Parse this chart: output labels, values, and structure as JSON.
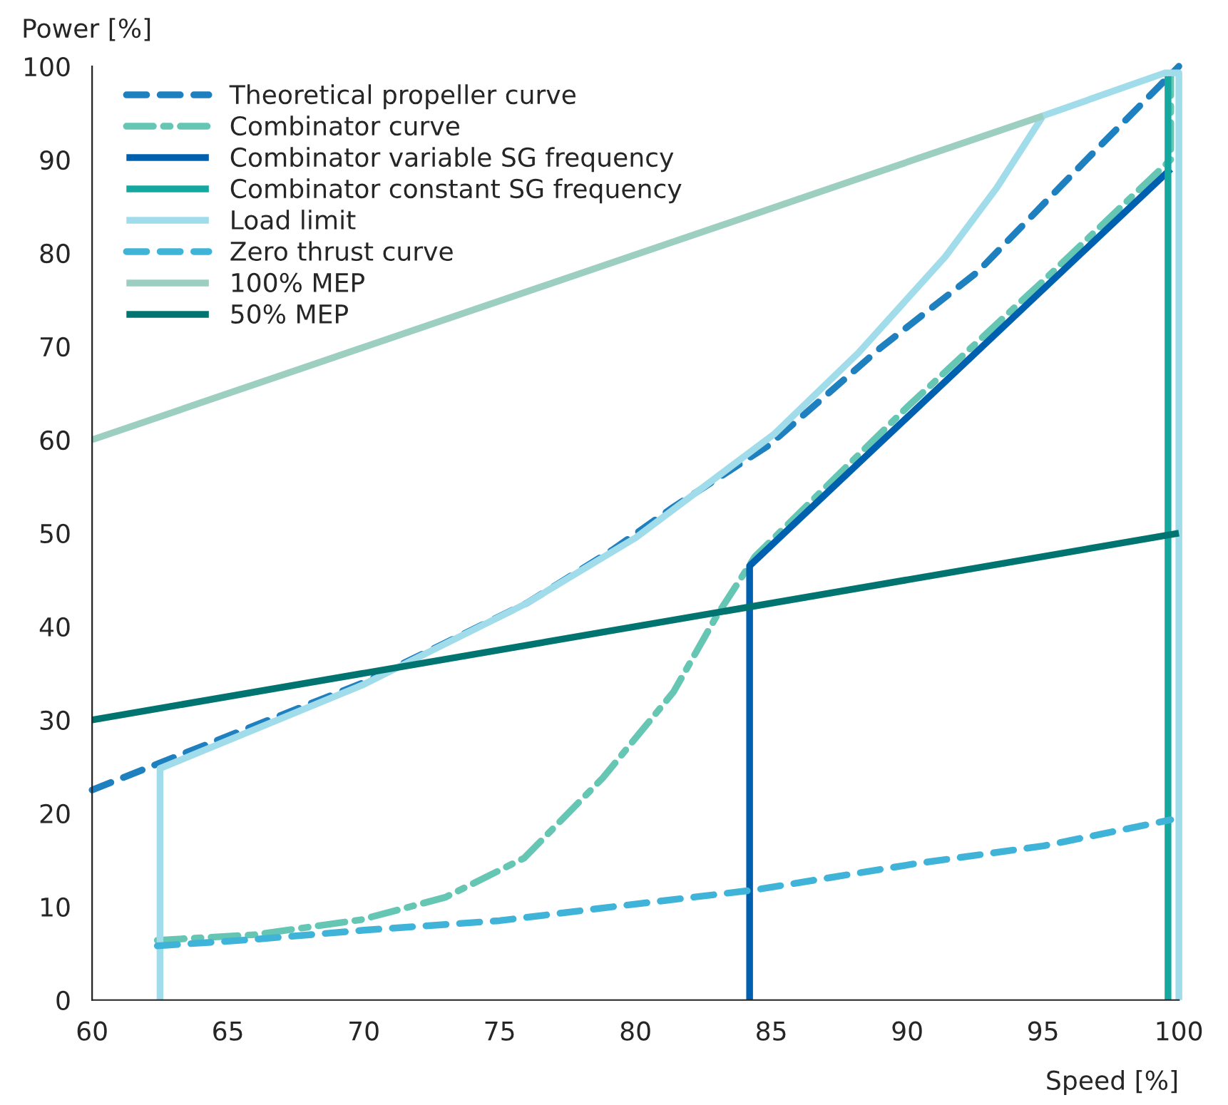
{
  "chart_data": {
    "type": "line",
    "xlabel": "Speed [%]",
    "ylabel": "Power [%]",
    "xlim": [
      60,
      100
    ],
    "xticks": [
      60,
      65,
      70,
      75,
      80,
      85,
      90,
      95,
      100
    ],
    "ylim": [
      0,
      100
    ],
    "yticks": [
      0,
      10,
      20,
      30,
      40,
      50,
      60,
      70,
      80,
      90,
      100
    ],
    "grid": false,
    "legend": "top left",
    "marker": "none",
    "series": [
      {
        "name": "Theoretical propeller curve",
        "color": "#1f80c0",
        "line_style": "dashed",
        "x": [
          60,
          62.5,
          70,
          76,
          79.2,
          81.4,
          84.9,
          89,
          92.6,
          96.6,
          100
        ],
        "values": [
          22.5,
          25.4,
          34,
          42.5,
          48.3,
          52.8,
          59.4,
          69.8,
          78,
          90,
          100
        ]
      },
      {
        "name": "Combinator curve",
        "color": "#66c6b4",
        "line_style": "dashdot",
        "x": [
          62.4,
          66,
          69.9,
          73,
          75.9,
          78.8,
          81.4,
          83,
          84.4,
          90,
          95,
          99.7,
          99.7
        ],
        "values": [
          6.4,
          7,
          8.6,
          11,
          15.2,
          23.8,
          33,
          41.2,
          47.5,
          63.5,
          77,
          90,
          99
        ]
      },
      {
        "name": "Combinator variable SG frequency",
        "color": "#0060b0",
        "line_style": "solid",
        "x": [
          84.2,
          84.2,
          99.7
        ],
        "values": [
          0,
          46.5,
          89
        ]
      },
      {
        "name": "Combinator constant SG frequency",
        "color": "#14a89e",
        "line_style": "solid",
        "x": [
          99.6,
          99.6
        ],
        "values": [
          0,
          99
        ]
      },
      {
        "name": "Load limit",
        "color": "#a0dcea",
        "line_style": "solid",
        "x": [
          62.5,
          62.5,
          70,
          76,
          80,
          85.1,
          88.2,
          91.4,
          93.3,
          95,
          99.5,
          100,
          100
        ],
        "values": [
          0,
          24.8,
          33.8,
          42.5,
          49.5,
          60.6,
          69.3,
          79.6,
          87,
          94.7,
          99.3,
          99.3,
          0
        ]
      },
      {
        "name": "Zero thrust curve",
        "color": "#40b4d8",
        "line_style": "dashed",
        "x": [
          62.4,
          66,
          70.1,
          75,
          79.2,
          84.4,
          90.3,
          95,
          99.7
        ],
        "values": [
          5.8,
          6.5,
          7.5,
          8.5,
          10,
          11.8,
          14.6,
          16.5,
          19.3
        ]
      },
      {
        "name": "100% MEP",
        "color": "#9ccfc0",
        "line_style": "solid",
        "x": [
          60,
          95
        ],
        "values": [
          60,
          94.7
        ]
      },
      {
        "name": "50% MEP",
        "color": "#007470",
        "line_style": "solid",
        "x": [
          60,
          100
        ],
        "values": [
          30,
          50
        ]
      }
    ]
  }
}
